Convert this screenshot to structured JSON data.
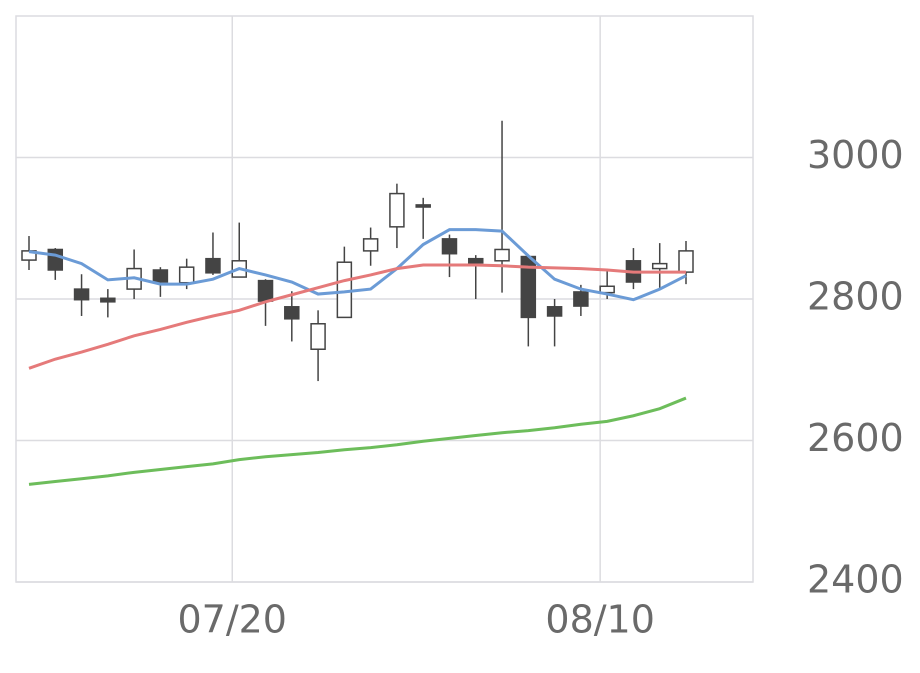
{
  "chart_data": {
    "type": "candlestick",
    "categories": [
      null,
      null,
      null,
      null,
      null,
      null,
      null,
      null,
      "07/20",
      null,
      null,
      null,
      null,
      null,
      null,
      null,
      null,
      null,
      null,
      null,
      null,
      null,
      "08/10",
      null,
      null,
      null
    ],
    "open": [
      2855,
      2870,
      2814,
      2801,
      2814,
      2841,
      2823,
      2857,
      2831,
      2826,
      2789,
      2729,
      2774,
      2868,
      2902,
      2933,
      2885,
      2857,
      2854,
      2860,
      2789,
      2810,
      2809,
      2854,
      2843,
      2838
    ],
    "high": [
      2889,
      2872,
      2835,
      2814,
      2870,
      2845,
      2857,
      2894,
      2908,
      2828,
      2811,
      2784,
      2874,
      2901,
      2963,
      2943,
      2891,
      2862,
      3052,
      2862,
      2800,
      2820,
      2841,
      2872,
      2879,
      2882
    ],
    "low": [
      2841,
      2827,
      2776,
      2774,
      2800,
      2803,
      2814,
      2834,
      2831,
      2762,
      2740,
      2684,
      2774,
      2847,
      2872,
      2885,
      2831,
      2800,
      2809,
      2733,
      2733,
      2776,
      2800,
      2814,
      2814,
      2821
    ],
    "close": [
      2868,
      2841,
      2799,
      2796,
      2843,
      2824,
      2845,
      2837,
      2854,
      2797,
      2772,
      2765,
      2852,
      2885,
      2949,
      2930,
      2864,
      2851,
      2870,
      2774,
      2776,
      2790,
      2818,
      2824,
      2850,
      2868
    ],
    "up_color": "#ffffff",
    "down_color": "#444444",
    "series": [
      {
        "color": "#6b9bd6",
        "values": [
          2867,
          2862,
          2850,
          2827,
          2830,
          2821,
          2821,
          2828,
          2843,
          2834,
          2824,
          2807,
          2810,
          2814,
          2843,
          2877,
          2898,
          2898,
          2896,
          2861,
          2828,
          2814,
          2807,
          2799,
          2814,
          2833
        ]
      },
      {
        "color": "#e57a7a",
        "values": [
          2702,
          2715,
          2725,
          2736,
          2748,
          2757,
          2767,
          2776,
          2784,
          2796,
          2806,
          2816,
          2826,
          2834,
          2843,
          2848,
          2848,
          2848,
          2847,
          2845,
          2844,
          2843,
          2841,
          2838,
          2838,
          2838
        ]
      },
      {
        "color": "#6dbd5b",
        "values": [
          2538,
          2542,
          2546,
          2550,
          2555,
          2559,
          2563,
          2567,
          2573,
          2577,
          2580,
          2583,
          2587,
          2590,
          2594,
          2599,
          2603,
          2607,
          2611,
          2614,
          2618,
          2623,
          2627,
          2635,
          2645,
          2660
        ]
      }
    ],
    "ylim": [
      2400,
      3200
    ],
    "yticks": [
      2400,
      2600,
      2800,
      3000
    ],
    "grid": true
  }
}
